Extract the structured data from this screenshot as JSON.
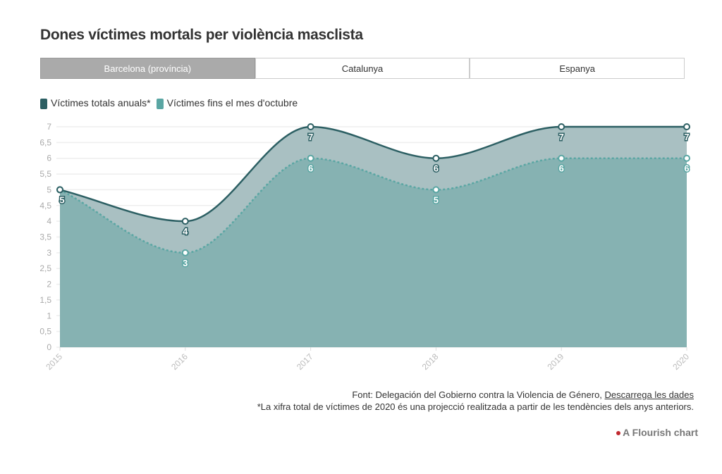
{
  "title": "Dones víctimes mortals per violència masclista",
  "tabs": [
    {
      "label": "Barcelona (província)",
      "active": true
    },
    {
      "label": "Catalunya",
      "active": false
    },
    {
      "label": "Espanya",
      "active": false
    }
  ],
  "legend": [
    {
      "label": "Víctimes totals anuals*",
      "color": "#2c5f63"
    },
    {
      "label": "Víctimes fins el mes d'octubre",
      "color": "#5aa6a3"
    }
  ],
  "chart_data": {
    "type": "area",
    "title": "Dones víctimes mortals per violència masclista",
    "x": [
      "2015",
      "2016",
      "2017",
      "2018",
      "2019",
      "2020"
    ],
    "series": [
      {
        "name": "Víctimes totals anuals*",
        "values": [
          5,
          4,
          7,
          6,
          7,
          7
        ],
        "color": "#2c5f63"
      },
      {
        "name": "Víctimes fins el mes d'octubre",
        "values": [
          5,
          3,
          6,
          5,
          6,
          6
        ],
        "color": "#5aa6a3"
      }
    ],
    "yticks": [
      "0",
      "0,5",
      "1",
      "1,5",
      "2",
      "2,5",
      "3",
      "3,5",
      "4",
      "4,5",
      "5",
      "5,5",
      "6",
      "6,5",
      "7"
    ],
    "ylim": [
      0,
      7
    ],
    "grid": true,
    "legend_position": "top-left"
  },
  "footer": {
    "source": "Font: Delegación del Gobierno contra la Violencia de Género, ",
    "download": "Descarrega les dades",
    "note": "*La xifra total de víctimes de 2020 és una projecció realitzada a partir de les tendències dels anys anteriors."
  },
  "credit": "A Flourish chart"
}
